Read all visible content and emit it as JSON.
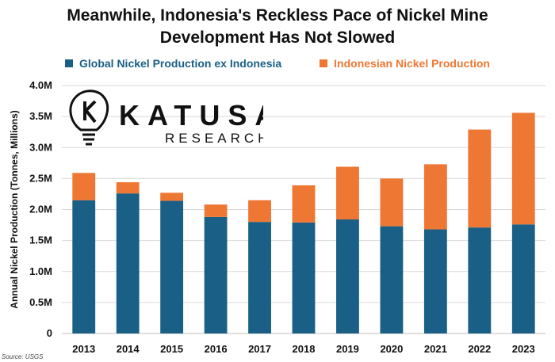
{
  "title": [
    "Meanwhile, Indonesia's Reckless Pace of Nickel Mine",
    "Development Has Not Slowed"
  ],
  "logo": {
    "name": "KATUSA",
    "sub": "RESEARCH"
  },
  "source": "Source: USGS",
  "colors": {
    "global": "#1a5f85",
    "indonesia": "#ee7733"
  },
  "chart_data": {
    "type": "bar",
    "stacked": true,
    "title": "Meanwhile, Indonesia's Reckless Pace of Nickel Mine Development Has Not Slowed",
    "xlabel": "",
    "ylabel": "Annual Nickel Production (Tonnes, Millions)",
    "ylim": [
      0,
      4000000
    ],
    "yticks": [
      0,
      500000,
      1000000,
      1500000,
      2000000,
      2500000,
      3000000,
      3500000,
      4000000
    ],
    "ytick_labels": [
      "0",
      "0.5M",
      "1.0M",
      "1.5M",
      "2.0M",
      "2.5M",
      "3.0M",
      "3.5M",
      "4.0M"
    ],
    "grid": true,
    "legend_position": "top",
    "categories": [
      "2013",
      "2014",
      "2015",
      "2016",
      "2017",
      "2018",
      "2019",
      "2020",
      "2021",
      "2022",
      "2023"
    ],
    "series": [
      {
        "name": "Global Nickel Production ex Indonesia",
        "color": "#1a5f85",
        "values": [
          2150000,
          2260000,
          2140000,
          1880000,
          1800000,
          1790000,
          1840000,
          1730000,
          1680000,
          1710000,
          1760000
        ]
      },
      {
        "name": "Indonesian Nickel Production",
        "color": "#ee7733",
        "values": [
          440000,
          180000,
          130000,
          200000,
          350000,
          600000,
          850000,
          770000,
          1050000,
          1580000,
          1800000
        ]
      }
    ]
  }
}
